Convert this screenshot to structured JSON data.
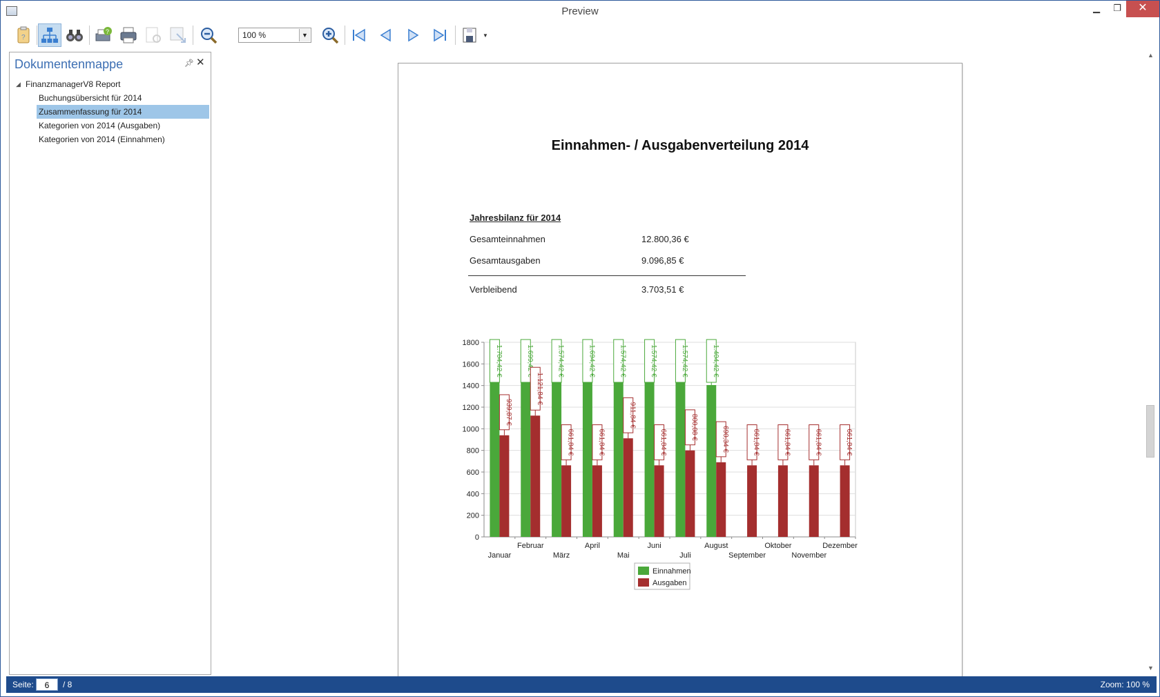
{
  "window": {
    "title": "Preview"
  },
  "toolbar": {
    "zoom_value": "100 %"
  },
  "doc_panel": {
    "title": "Dokumentenmappe",
    "root": "FinanzmanagerV8 Report",
    "items": [
      {
        "label": "Buchungsübersicht für 2014",
        "selected": false
      },
      {
        "label": "Zusammenfassung für 2014",
        "selected": true
      },
      {
        "label": "Kategorien von 2014 (Ausgaben)",
        "selected": false
      },
      {
        "label": "Kategorien von 2014 (Einnahmen)",
        "selected": false
      }
    ]
  },
  "report": {
    "title": "Einnahmen- / Ausgabenverteilung 2014",
    "section_title": "Jahresbilanz für 2014",
    "rows": [
      {
        "label": "Gesamteinnahmen",
        "value": "12.800,36 €"
      },
      {
        "label": "Gesamtausgaben",
        "value": "9.096,85 €"
      },
      {
        "label": "Verbleibend",
        "value": "3.703,51 €"
      }
    ]
  },
  "chart_data": {
    "type": "bar",
    "categories": [
      "Januar",
      "Februar",
      "März",
      "April",
      "Mai",
      "Juni",
      "Juli",
      "August",
      "September",
      "Oktober",
      "November",
      "Dezember"
    ],
    "series": [
      {
        "name": "Einnahmen",
        "color": "#4aa83a",
        "values": [
          1704.42,
          1699.42,
          1574.42,
          1694.42,
          1574.42,
          1574.42,
          1574.42,
          1404.42,
          0,
          0,
          0,
          0
        ],
        "labels": [
          "1.704,42 €",
          "1.699,42 €",
          "1.574,42 €",
          "1.694,42 €",
          "1.574,42 €",
          "1.574,42 €",
          "1.574,42 €",
          "1.404,42 €",
          "",
          "",
          "",
          ""
        ]
      },
      {
        "name": "Ausgaben",
        "color": "#a42e2e",
        "values": [
          939.87,
          1121.84,
          661.84,
          661.84,
          911.84,
          661.84,
          800.08,
          690.34,
          661.84,
          661.84,
          661.84,
          661.84
        ],
        "labels": [
          "939,87 €",
          "1.121,84 €",
          "661,84 €",
          "661,84 €",
          "911,84 €",
          "661,84 €",
          "800,08 €",
          "690,34 €",
          "661,84 €",
          "661,84 €",
          "661,84 €",
          "661,84 €"
        ]
      }
    ],
    "y_ticks": [
      "0",
      "200",
      "400",
      "600",
      "800",
      "1000",
      "1200",
      "1400",
      "1600",
      "1800"
    ],
    "ylim": [
      0,
      1800
    ],
    "legend_position": "bottom-center",
    "grid": true
  },
  "status": {
    "page_label": "Seite:",
    "page_current": "6",
    "page_total": "/ 8",
    "zoom": "Zoom: 100 %"
  }
}
